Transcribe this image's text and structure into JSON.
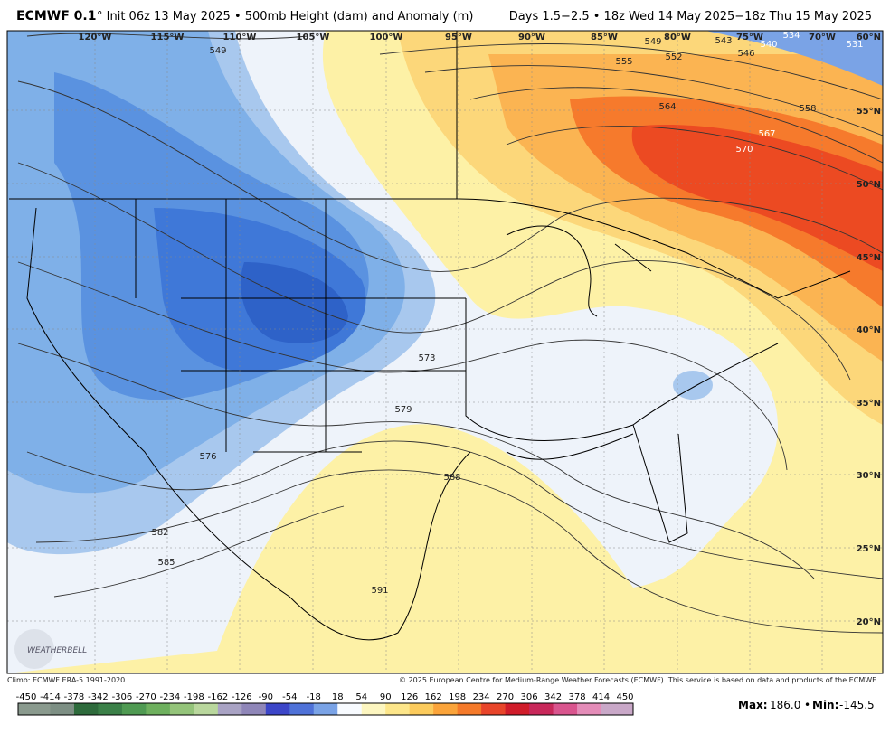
{
  "header": {
    "model": "ECMWF 0.1",
    "init": "° Init 06z 13 May 2025 • 500mb Height (dam) and Anomaly (m)",
    "valid": "Days 1.5−2.5 • 18z Wed 14 May 2025−18z Thu 15 May 2025"
  },
  "map": {
    "longitudes": [
      "120°W",
      "115°W",
      "110°W",
      "105°W",
      "100°W",
      "95°W",
      "90°W",
      "85°W",
      "80°W",
      "75°W",
      "70°W"
    ],
    "latitudes": [
      "60°N",
      "55°N",
      "50°N",
      "45°N",
      "40°N",
      "35°N",
      "30°N",
      "25°N",
      "20°N"
    ],
    "contour_labels": [
      "549",
      "555",
      "552",
      "549",
      "546",
      "543",
      "540",
      "534",
      "531",
      "564",
      "558",
      "567",
      "570",
      "573",
      "579",
      "576",
      "588",
      "582",
      "585",
      "591"
    ],
    "logo": "WEATHERBELL"
  },
  "footer": {
    "climo": "Climo: ECMWF ERA-5 1991-2020",
    "copyright": "© 2025 European Centre for Medium-Range Weather Forecasts (ECMWF). This service is based on data and products of the ECMWF."
  },
  "colorbar": {
    "labels": [
      "-450",
      "-414",
      "-378",
      "-342",
      "-306",
      "-270",
      "-234",
      "-198",
      "-162",
      "-126",
      "-90",
      "-54",
      "-18",
      "18",
      "54",
      "90",
      "126",
      "162",
      "198",
      "234",
      "270",
      "306",
      "342",
      "378",
      "414",
      "450"
    ],
    "colors": [
      "#8a9a8e",
      "#7d8f84",
      "#2e6b3c",
      "#3b8048",
      "#4f9a52",
      "#6eb05e",
      "#94c47a",
      "#b9d79d",
      "#a9a3c4",
      "#8f86b8",
      "#3c46c8",
      "#4f72d8",
      "#7aa3e6",
      "#f8fbff",
      "#fdf6c0",
      "#fde68a",
      "#fccb5c",
      "#fba43a",
      "#f57a2a",
      "#e8452a",
      "#d01c2a",
      "#c8285a",
      "#d9558e",
      "#e48cb8",
      "#c9a8c8"
    ],
    "max_label": "Max:",
    "max": "186.0",
    "sep": "•",
    "min_label": "Min:",
    "min": "-145.5"
  }
}
